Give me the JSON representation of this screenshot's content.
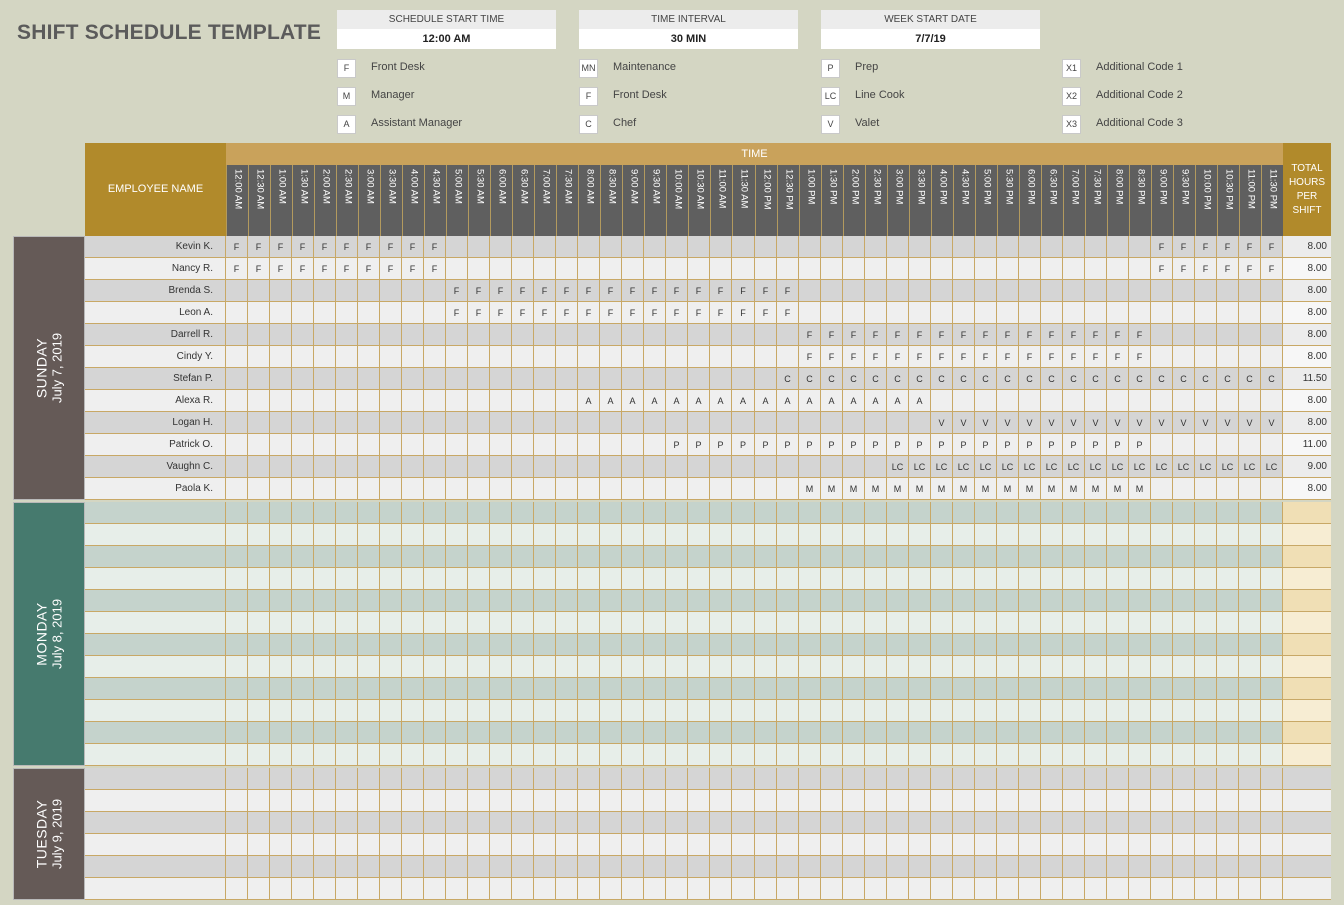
{
  "title": "SHIFT SCHEDULE TEMPLATE",
  "params": [
    {
      "label": "SCHEDULE START TIME",
      "value": "12:00 AM"
    },
    {
      "label": "TIME INTERVAL",
      "value": "30 MIN"
    },
    {
      "label": "WEEK START DATE",
      "value": "7/7/19"
    }
  ],
  "legend": [
    [
      {
        "code": "F",
        "name": "Front Desk"
      },
      {
        "code": "M",
        "name": "Manager"
      },
      {
        "code": "A",
        "name": "Assistant Manager"
      }
    ],
    [
      {
        "code": "MN",
        "name": "Maintenance"
      },
      {
        "code": "F",
        "name": "Front Desk"
      },
      {
        "code": "C",
        "name": "Chef"
      }
    ],
    [
      {
        "code": "P",
        "name": "Prep"
      },
      {
        "code": "LC",
        "name": "Line Cook"
      },
      {
        "code": "V",
        "name": "Valet"
      }
    ],
    [
      {
        "code": "X1",
        "name": "Additional Code 1"
      },
      {
        "code": "X2",
        "name": "Additional Code 2"
      },
      {
        "code": "X3",
        "name": "Additional Code 3"
      }
    ]
  ],
  "header": {
    "employee_name": "EMPLOYEE NAME",
    "time": "TIME",
    "total": "TOTAL HOURS PER SHIFT"
  },
  "time_slots": [
    "12:00 AM",
    "12:30 AM",
    "1:00 AM",
    "1:30 AM",
    "2:00 AM",
    "2:30 AM",
    "3:00 AM",
    "3:30 AM",
    "4:00 AM",
    "4:30 AM",
    "5:00 AM",
    "5:30 AM",
    "6:00 AM",
    "6:30 AM",
    "7:00 AM",
    "7:30 AM",
    "8:00 AM",
    "8:30 AM",
    "9:00 AM",
    "9:30 AM",
    "10:00 AM",
    "10:30 AM",
    "11:00 AM",
    "11:30 AM",
    "12:00 PM",
    "12:30 PM",
    "1:00 PM",
    "1:30 PM",
    "2:00 PM",
    "2:30 PM",
    "3:00 PM",
    "3:30 PM",
    "4:00 PM",
    "4:30 PM",
    "5:00 PM",
    "5:30 PM",
    "6:00 PM",
    "6:30 PM",
    "7:00 PM",
    "7:30 PM",
    "8:00 PM",
    "8:30 PM",
    "9:00 PM",
    "9:30 PM",
    "10:00 PM",
    "10:30 PM",
    "11:00 PM",
    "11:30 PM"
  ],
  "days": [
    {
      "name": "SUNDAY",
      "date": "July 7, 2019",
      "band_color": "#655a57",
      "row_colors": [
        "#d5d5d5",
        "#efefef"
      ],
      "total_colors": [
        "#ececec",
        "#f7f7f7"
      ],
      "rows": [
        {
          "name": "Kevin K.",
          "shifts": [
            {
              "code": "F",
              "start": 0,
              "end": 9
            },
            {
              "code": "F",
              "start": 42,
              "end": 47
            }
          ],
          "total": "8.00"
        },
        {
          "name": "Nancy R.",
          "shifts": [
            {
              "code": "F",
              "start": 0,
              "end": 9
            },
            {
              "code": "F",
              "start": 42,
              "end": 47
            }
          ],
          "total": "8.00"
        },
        {
          "name": "Brenda S.",
          "shifts": [
            {
              "code": "F",
              "start": 10,
              "end": 25
            }
          ],
          "total": "8.00"
        },
        {
          "name": "Leon A.",
          "shifts": [
            {
              "code": "F",
              "start": 10,
              "end": 25
            }
          ],
          "total": "8.00"
        },
        {
          "name": "Darrell R.",
          "shifts": [
            {
              "code": "F",
              "start": 26,
              "end": 41
            }
          ],
          "total": "8.00"
        },
        {
          "name": "Cindy Y.",
          "shifts": [
            {
              "code": "F",
              "start": 26,
              "end": 41
            }
          ],
          "total": "8.00"
        },
        {
          "name": "Stefan P.",
          "shifts": [
            {
              "code": "C",
              "start": 25,
              "end": 47
            }
          ],
          "total": "11.50"
        },
        {
          "name": "Alexa R.",
          "shifts": [
            {
              "code": "A",
              "start": 16,
              "end": 31
            }
          ],
          "total": "8.00"
        },
        {
          "name": "Logan H.",
          "shifts": [
            {
              "code": "V",
              "start": 32,
              "end": 47
            }
          ],
          "total": "8.00"
        },
        {
          "name": "Patrick O.",
          "shifts": [
            {
              "code": "P",
              "start": 20,
              "end": 41
            }
          ],
          "total": "11.00"
        },
        {
          "name": "Vaughn C.",
          "shifts": [
            {
              "code": "LC",
              "start": 30,
              "end": 47
            }
          ],
          "total": "9.00"
        },
        {
          "name": "Paola K.",
          "shifts": [
            {
              "code": "M",
              "start": 26,
              "end": 41
            }
          ],
          "total": "8.00"
        }
      ]
    },
    {
      "name": "MONDAY",
      "date": "July 8, 2019",
      "band_color": "#467a6e",
      "row_colors": [
        "#c5d3cc",
        "#e7eee9"
      ],
      "total_colors": [
        "#f0dfb5",
        "#f7edd3"
      ],
      "rows": [
        {
          "name": "",
          "shifts": [],
          "total": ""
        },
        {
          "name": "",
          "shifts": [],
          "total": ""
        },
        {
          "name": "",
          "shifts": [],
          "total": ""
        },
        {
          "name": "",
          "shifts": [],
          "total": ""
        },
        {
          "name": "",
          "shifts": [],
          "total": ""
        },
        {
          "name": "",
          "shifts": [],
          "total": ""
        },
        {
          "name": "",
          "shifts": [],
          "total": ""
        },
        {
          "name": "",
          "shifts": [],
          "total": ""
        },
        {
          "name": "",
          "shifts": [],
          "total": ""
        },
        {
          "name": "",
          "shifts": [],
          "total": ""
        },
        {
          "name": "",
          "shifts": [],
          "total": ""
        },
        {
          "name": "",
          "shifts": [],
          "total": ""
        }
      ]
    },
    {
      "name": "TUESDAY",
      "date": "July 9, 2019",
      "band_color": "#655a57",
      "row_colors": [
        "#d5d5d5",
        "#efefef"
      ],
      "total_colors": [
        "#d5d5d5",
        "#efefef"
      ],
      "rows": [
        {
          "name": "",
          "shifts": [],
          "total": ""
        },
        {
          "name": "",
          "shifts": [],
          "total": ""
        },
        {
          "name": "",
          "shifts": [],
          "total": ""
        },
        {
          "name": "",
          "shifts": [],
          "total": ""
        },
        {
          "name": "",
          "shifts": [],
          "total": ""
        },
        {
          "name": "",
          "shifts": [],
          "total": ""
        }
      ]
    }
  ]
}
